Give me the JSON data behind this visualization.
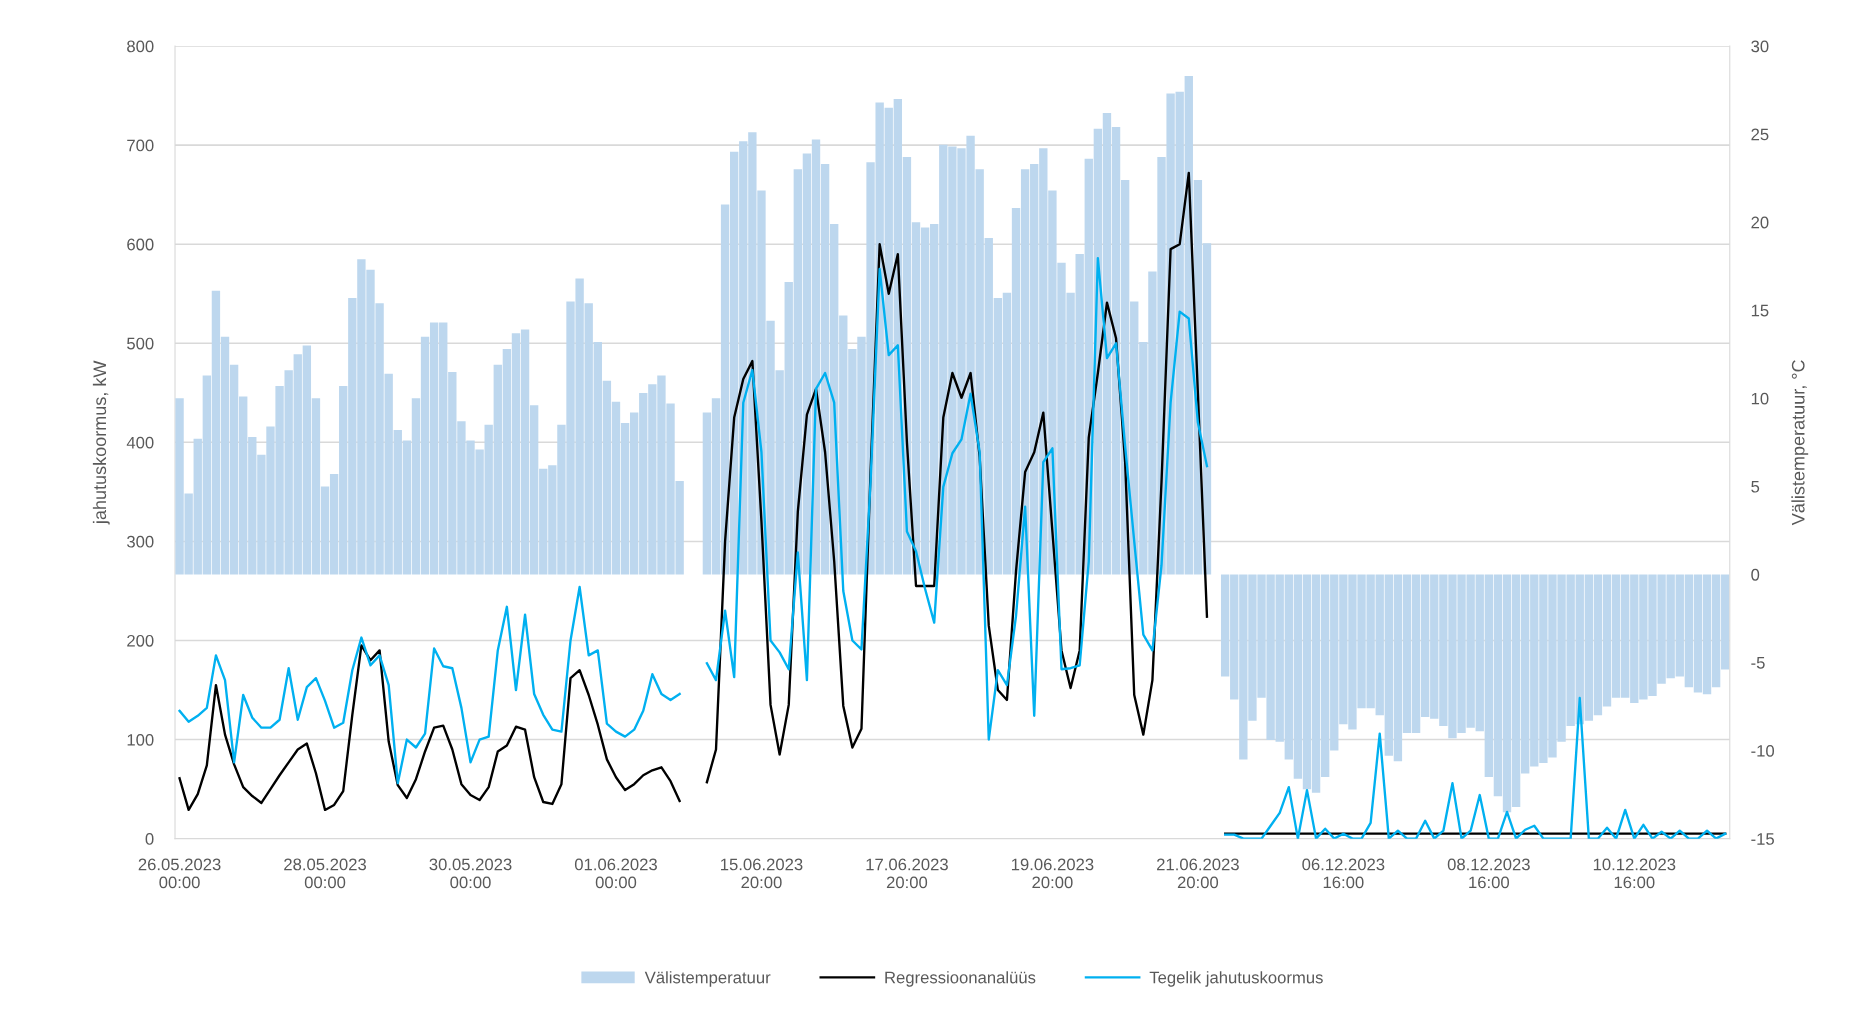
{
  "chart_data": {
    "type": "line",
    "ylabel": "jahutuskoormus, kW",
    "y2label": "Välistemperatuur, °C",
    "categories": [
      "26.05.2023 00:00",
      null,
      null,
      null,
      null,
      null,
      null,
      null,
      null,
      null,
      null,
      null,
      null,
      null,
      null,
      null,
      "28.05.2023 00:00",
      null,
      null,
      null,
      null,
      null,
      null,
      null,
      null,
      null,
      null,
      null,
      null,
      null,
      null,
      null,
      "30.05.2023 00:00",
      null,
      null,
      null,
      null,
      null,
      null,
      null,
      null,
      null,
      null,
      null,
      null,
      null,
      null,
      null,
      "01.06.2023 00:00",
      null,
      null,
      null,
      null,
      null,
      null,
      null,
      null,
      null,
      null,
      null,
      null,
      null,
      null,
      null,
      "15.06.2023 20:00",
      null,
      null,
      null,
      null,
      null,
      null,
      null,
      null,
      null,
      null,
      null,
      null,
      null,
      null,
      null,
      "17.06.2023 20:00",
      null,
      null,
      null,
      null,
      null,
      null,
      null,
      null,
      null,
      null,
      null,
      null,
      null,
      null,
      null,
      "19.06.2023 20:00",
      null,
      null,
      null,
      null,
      null,
      null,
      null,
      null,
      null,
      null,
      null,
      null,
      null,
      null,
      null,
      "21.06.2023 20:00",
      null,
      null,
      null,
      null,
      null,
      null,
      null,
      null,
      null,
      null,
      null,
      null,
      null,
      null,
      null,
      "06.12.2023 16:00",
      null,
      null,
      null,
      null,
      null,
      null,
      null,
      null,
      null,
      null,
      null,
      null,
      null,
      null,
      null,
      "08.12.2023 16:00",
      null,
      null,
      null,
      null,
      null,
      null,
      null,
      null,
      null,
      null,
      null,
      null,
      null,
      null,
      null,
      "10.12.2023 16:00",
      null,
      null,
      null,
      null,
      null,
      null,
      null,
      null,
      null,
      null
    ],
    "series": [
      {
        "name": "Välistemperatuur",
        "type": "bar",
        "axis": "y2",
        "color": "#bdd7ee",
        "values": [
          10.0,
          4.6,
          7.7,
          11.3,
          16.1,
          13.5,
          11.9,
          10.1,
          7.8,
          6.8,
          8.4,
          10.7,
          11.6,
          12.5,
          13.0,
          10.0,
          5.0,
          5.7,
          10.7,
          15.7,
          17.9,
          17.3,
          15.4,
          11.4,
          8.2,
          7.6,
          10.0,
          13.5,
          14.3,
          14.3,
          11.5,
          8.7,
          7.6,
          7.1,
          8.5,
          11.9,
          12.8,
          13.7,
          13.9,
          9.6,
          6.0,
          6.2,
          8.5,
          15.5,
          16.8,
          15.4,
          13.2,
          11.0,
          9.8,
          8.6,
          9.2,
          10.3,
          10.8,
          11.3,
          9.7,
          5.3,
          null,
          null,
          9.2,
          10.0,
          21.0,
          24.0,
          24.6,
          25.1,
          21.8,
          14.4,
          11.6,
          16.6,
          23.0,
          23.9,
          24.7,
          23.3,
          19.9,
          14.7,
          12.8,
          13.5,
          23.4,
          26.8,
          26.5,
          27.0,
          23.7,
          20.0,
          19.7,
          19.9,
          24.4,
          24.3,
          24.2,
          24.9,
          23.0,
          19.1,
          15.7,
          16.0,
          20.8,
          23.0,
          23.3,
          24.2,
          21.8,
          17.7,
          16.0,
          18.2,
          23.6,
          25.3,
          26.2,
          25.4,
          22.4,
          15.5,
          13.2,
          17.2,
          23.7,
          27.3,
          27.4,
          28.3,
          22.4,
          18.8,
          null,
          -5.8,
          -7.1,
          -10.5,
          -8.3,
          -7.0,
          -9.4,
          -9.5,
          -10.5,
          -11.6,
          -12.2,
          -12.4,
          -11.5,
          -10.0,
          -8.5,
          -8.8,
          -7.6,
          -7.6,
          -8.0,
          -10.3,
          -10.6,
          -9.0,
          -9.0,
          -8.1,
          -8.2,
          -8.6,
          -9.3,
          -9.0,
          -8.7,
          -8.9,
          -11.5,
          -12.6,
          -13.5,
          -13.2,
          -11.3,
          -10.9,
          -10.7,
          -10.4,
          -9.5,
          -8.6,
          -8.5,
          -8.3,
          -8.0,
          -7.5,
          -7.0,
          -7.0,
          -7.3,
          -7.1,
          -6.9,
          -6.2,
          -5.9,
          -5.8,
          -6.4,
          -6.7,
          -6.8,
          -6.4,
          -5.4
        ]
      },
      {
        "name": "Regressioonanalüüs",
        "color": "#000000",
        "values": [
          61,
          29,
          45,
          74,
          155,
          105,
          75,
          52,
          43,
          36,
          50,
          64,
          77,
          90,
          96,
          66,
          29,
          34,
          48,
          125,
          195,
          180,
          190,
          98,
          54,
          41,
          60,
          88,
          112,
          114,
          90,
          55,
          44,
          39,
          52,
          88,
          94,
          113,
          110,
          62,
          37,
          35,
          55,
          162,
          170,
          145,
          115,
          80,
          62,
          49,
          55,
          64,
          69,
          72,
          58,
          38,
          null,
          null,
          57,
          90,
          300,
          425,
          464,
          482,
          320,
          135,
          85,
          135,
          330,
          428,
          454,
          390,
          280,
          134,
          92,
          111,
          370,
          600,
          550,
          590,
          400,
          255,
          255,
          255,
          425,
          470,
          445,
          470,
          385,
          215,
          150,
          140,
          270,
          370,
          390,
          430,
          310,
          190,
          152,
          190,
          405,
          470,
          541,
          505,
          380,
          145,
          105,
          160,
          360,
          595,
          600,
          672,
          450,
          224,
          null,
          5,
          5,
          5,
          5,
          5,
          5,
          5,
          5,
          5,
          5,
          5,
          5,
          5,
          5,
          5,
          5,
          5,
          5,
          5,
          5,
          5,
          5,
          5,
          5,
          5,
          5,
          5,
          5,
          5,
          5,
          5,
          5,
          5,
          5,
          5,
          5,
          5,
          5,
          5,
          5,
          5,
          5,
          5,
          5,
          5,
          5,
          5,
          5,
          5,
          5,
          5,
          5,
          5,
          5,
          5,
          5
        ]
      },
      {
        "name": "Tegelik jahutuskoormus",
        "color": "#00b0f0",
        "values": [
          129,
          118,
          124,
          132,
          185,
          160,
          77,
          145,
          122,
          112,
          112,
          120,
          172,
          120,
          153,
          162,
          139,
          112,
          117,
          170,
          203,
          175,
          185,
          155,
          56,
          100,
          92,
          106,
          192,
          174,
          172,
          132,
          77,
          100,
          103,
          190,
          234,
          150,
          226,
          146,
          125,
          110,
          108,
          200,
          254,
          185,
          190,
          116,
          108,
          103,
          110,
          129,
          166,
          146,
          140,
          146,
          null,
          null,
          177,
          160,
          230,
          163,
          440,
          473,
          390,
          200,
          188,
          171,
          289,
          160,
          454,
          470,
          440,
          250,
          200,
          191,
          360,
          575,
          488,
          498,
          310,
          290,
          252,
          218,
          355,
          389,
          403,
          449,
          390,
          100,
          170,
          155,
          225,
          335,
          124,
          380,
          394,
          171,
          172,
          175,
          280,
          586,
          485,
          500,
          396,
          300,
          206,
          190,
          276,
          440,
          532,
          525,
          420,
          376,
          null,
          4,
          4,
          0,
          0,
          0,
          13,
          26,
          52,
          0,
          49,
          0,
          10,
          0,
          5,
          0,
          0,
          16,
          106,
          0,
          8,
          0,
          0,
          18,
          0,
          8,
          56,
          0,
          8,
          44,
          0,
          0,
          27,
          0,
          9,
          13,
          0,
          0,
          0,
          0,
          142,
          0,
          0,
          11,
          0,
          29,
          0,
          14,
          0,
          7,
          0,
          8,
          0,
          0,
          8,
          0,
          5
        ]
      }
    ],
    "ylim": [
      0,
      800
    ],
    "yticks": [
      0,
      100,
      200,
      300,
      400,
      500,
      600,
      700,
      800
    ],
    "y2lim": [
      -15,
      30
    ],
    "y2ticks": [
      -15,
      -10,
      -5,
      0,
      5,
      10,
      15,
      20,
      25,
      30
    ],
    "grid": "y",
    "legend": "bottom"
  }
}
